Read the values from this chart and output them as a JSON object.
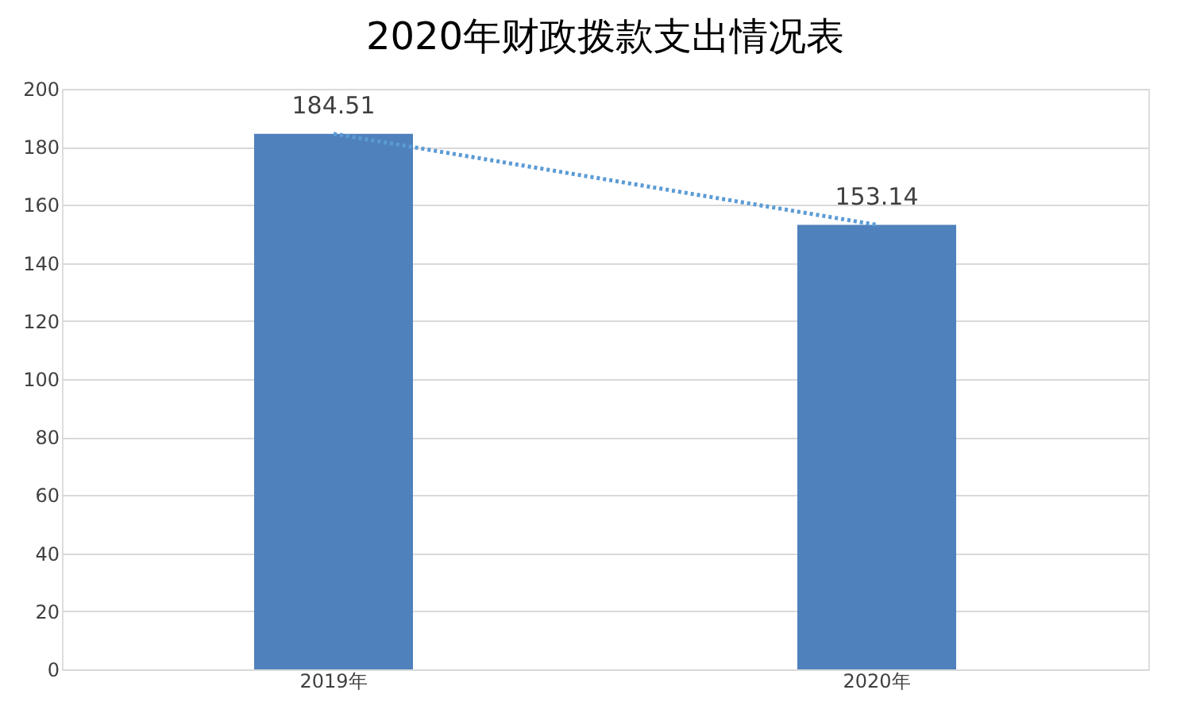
{
  "chart_data": {
    "type": "bar",
    "title": "2020年财政拨款支出情况表",
    "categories": [
      "2019年",
      "2020年"
    ],
    "series": [
      {
        "color": "#4f81bd",
        "values": [
          184.51,
          153.14
        ],
        "value_labels": [
          "184.51",
          "153.14"
        ]
      },
      {
        "type": "line",
        "color": "#5b9bd5",
        "line_style": "dotted",
        "values": [
          184.51,
          153.14
        ]
      }
    ],
    "ylim": [
      0,
      200
    ],
    "yticks": [
      0,
      20,
      40,
      60,
      80,
      100,
      120,
      140,
      160,
      180,
      200
    ],
    "grid": "y"
  }
}
